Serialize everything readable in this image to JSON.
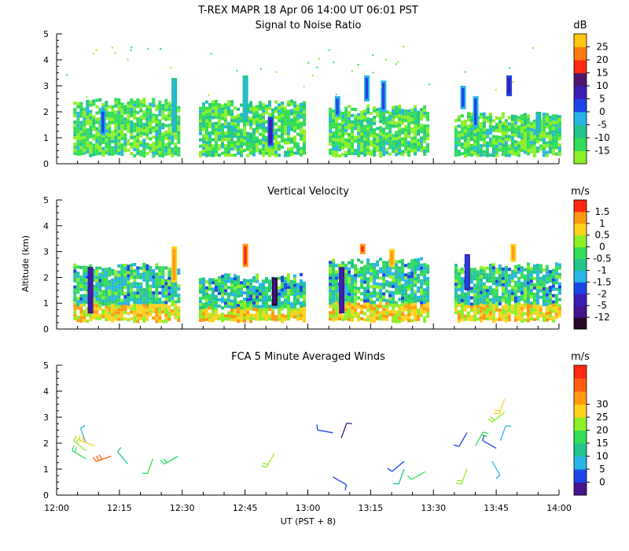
{
  "header": {
    "title": "T-REX   MAPR 18 Apr 06   14:00 UT   06:01   PST"
  },
  "chart_data": [
    {
      "type": "heatmap",
      "title": "Signal to Noise Ratio",
      "xlabel": "",
      "ylabel": "",
      "xlim_minutes": [
        0,
        120
      ],
      "ylim": [
        0,
        5
      ],
      "yticks": [
        "0",
        "1",
        "2",
        "3",
        "4",
        "5"
      ],
      "colorbar": {
        "unit": "dB",
        "labels": [
          "-15",
          "-10",
          "-5",
          "0",
          "5",
          "10",
          "15",
          "20",
          "25"
        ],
        "colors": [
          "#8cf028",
          "#33dd55",
          "#22c48c",
          "#28b4e6",
          "#1e46e6",
          "#3c1eb4",
          "#50146e",
          "#ff2a10",
          "#ff7a10",
          "#ffc810"
        ]
      },
      "segments": [
        {
          "x_start": 4,
          "x_end": 29,
          "top_km": 2.45
        },
        {
          "x_start": 34,
          "x_end": 59,
          "top_km": 2.4
        },
        {
          "x_start": 65,
          "x_end": 89,
          "top_km": 2.2
        },
        {
          "x_start": 95,
          "x_end": 120,
          "top_km": 1.9
        }
      ],
      "columns": [
        {
          "x": 11,
          "top_km": 2.1,
          "bottom_km": 1.1,
          "level": 4
        },
        {
          "x": 28,
          "top_km": 3.3,
          "bottom_km": 1.2,
          "level": 3
        },
        {
          "x": 45,
          "top_km": 3.4,
          "bottom_km": 1.6,
          "level": 3
        },
        {
          "x": 51,
          "top_km": 1.8,
          "bottom_km": 0.7,
          "level": 5
        },
        {
          "x": 67,
          "top_km": 2.6,
          "bottom_km": 1.8,
          "level": 4
        },
        {
          "x": 74,
          "top_km": 3.4,
          "bottom_km": 2.4,
          "level": 4
        },
        {
          "x": 78,
          "top_km": 3.2,
          "bottom_km": 2.0,
          "level": 4
        },
        {
          "x": 97,
          "top_km": 3.0,
          "bottom_km": 2.1,
          "level": 4
        },
        {
          "x": 100,
          "top_km": 2.6,
          "bottom_km": 1.4,
          "level": 4
        },
        {
          "x": 108,
          "top_km": 3.4,
          "bottom_km": 2.6,
          "level": 5
        },
        {
          "x": 115,
          "top_km": 2.0,
          "bottom_km": 1.2,
          "level": 3
        }
      ]
    },
    {
      "type": "heatmap",
      "title": "Vertical Velocity",
      "xlabel": "",
      "ylabel": "Altitude  (km)",
      "xlim_minutes": [
        0,
        120
      ],
      "ylim": [
        0,
        5
      ],
      "yticks": [
        "0",
        "1",
        "2",
        "3",
        "4",
        "5"
      ],
      "colorbar": {
        "unit": "m/s",
        "labels": [
          "-12",
          "-5",
          "-2",
          "-1.5",
          "-1",
          "-0.5",
          "0",
          "0.5",
          "1",
          "1.5"
        ],
        "colors": [
          "#280a28",
          "#46148c",
          "#3c1eb4",
          "#1e46e6",
          "#28b4e6",
          "#22c48c",
          "#33dd55",
          "#8cf028",
          "#ffd21e",
          "#ff9a10",
          "#ff2a10"
        ]
      },
      "segments": [
        {
          "x_start": 4,
          "x_end": 29,
          "top_km": 2.5
        },
        {
          "x_start": 34,
          "x_end": 59,
          "top_km": 2.1
        },
        {
          "x_start": 65,
          "x_end": 89,
          "top_km": 2.7
        },
        {
          "x_start": 95,
          "x_end": 120,
          "top_km": 2.5
        }
      ],
      "columns": [
        {
          "x": 8,
          "top_km": 2.4,
          "bottom_km": 0.6,
          "level": 2
        },
        {
          "x": 28,
          "top_km": 3.2,
          "bottom_km": 1.8,
          "level": 9
        },
        {
          "x": 45,
          "top_km": 3.3,
          "bottom_km": 2.4,
          "level": 10
        },
        {
          "x": 52,
          "top_km": 2.0,
          "bottom_km": 0.9,
          "level": 1
        },
        {
          "x": 68,
          "top_km": 2.4,
          "bottom_km": 0.6,
          "level": 2
        },
        {
          "x": 73,
          "top_km": 3.3,
          "bottom_km": 2.9,
          "level": 10
        },
        {
          "x": 80,
          "top_km": 3.1,
          "bottom_km": 2.4,
          "level": 9
        },
        {
          "x": 98,
          "top_km": 2.9,
          "bottom_km": 1.5,
          "level": 3
        },
        {
          "x": 109,
          "top_km": 3.3,
          "bottom_km": 2.6,
          "level": 9
        }
      ]
    },
    {
      "type": "scatter",
      "title": "FCA 5 Minute Averaged Winds",
      "xlabel": "UT  (PST + 8)",
      "ylabel": "",
      "xlim_minutes": [
        0,
        120
      ],
      "xticks": [
        "12:00",
        "12:15",
        "12:30",
        "12:45",
        "13:00",
        "13:15",
        "13:30",
        "13:45",
        "14:00"
      ],
      "ylim": [
        0,
        5
      ],
      "yticks": [
        "0",
        "1",
        "2",
        "3",
        "4",
        "5"
      ],
      "colorbar": {
        "unit": "m/s",
        "labels": [
          "0",
          "5",
          "10",
          "15",
          "20",
          "25",
          "30"
        ],
        "colors": [
          "#46148c",
          "#1e46e6",
          "#28b4e6",
          "#22c48c",
          "#33dd55",
          "#8cf028",
          "#ffd21e",
          "#ff9a10",
          "#ff6010",
          "#ff2a10"
        ]
      },
      "winds": [
        {
          "t": 7,
          "alt": 1.4,
          "speed": 15,
          "dir": 300
        },
        {
          "t": 7,
          "alt": 1.7,
          "speed": 18,
          "dir": 310
        },
        {
          "t": 7,
          "alt": 2.0,
          "speed": 8,
          "dir": 340
        },
        {
          "t": 9,
          "alt": 1.9,
          "speed": 20,
          "dir": 290
        },
        {
          "t": 13,
          "alt": 1.5,
          "speed": 28,
          "dir": 250
        },
        {
          "t": 17,
          "alt": 1.2,
          "speed": 12,
          "dir": 320
        },
        {
          "t": 23,
          "alt": 1.4,
          "speed": 14,
          "dir": 200
        },
        {
          "t": 29,
          "alt": 1.5,
          "speed": 15,
          "dir": 240
        },
        {
          "t": 52,
          "alt": 1.6,
          "speed": 17,
          "dir": 210
        },
        {
          "t": 66,
          "alt": 2.4,
          "speed": 6,
          "dir": 280
        },
        {
          "t": 68,
          "alt": 2.2,
          "speed": 3,
          "dir": 20
        },
        {
          "t": 66,
          "alt": 0.7,
          "speed": 4,
          "dir": 120
        },
        {
          "t": 83,
          "alt": 1.3,
          "speed": 6,
          "dir": 230
        },
        {
          "t": 83,
          "alt": 1.0,
          "speed": 10,
          "dir": 200
        },
        {
          "t": 88,
          "alt": 0.9,
          "speed": 14,
          "dir": 240
        },
        {
          "t": 98,
          "alt": 1.0,
          "speed": 18,
          "dir": 200
        },
        {
          "t": 98,
          "alt": 2.4,
          "speed": 4,
          "dir": 210
        },
        {
          "t": 100,
          "alt": 1.9,
          "speed": 16,
          "dir": 30
        },
        {
          "t": 104,
          "alt": 1.3,
          "speed": 9,
          "dir": 150
        },
        {
          "t": 105,
          "alt": 1.8,
          "speed": 4,
          "dir": 300
        },
        {
          "t": 106,
          "alt": 2.1,
          "speed": 8,
          "dir": 20
        },
        {
          "t": 107,
          "alt": 3.2,
          "speed": 18,
          "dir": 230
        },
        {
          "t": 107,
          "alt": 3.7,
          "speed": 21,
          "dir": 200
        }
      ]
    }
  ]
}
